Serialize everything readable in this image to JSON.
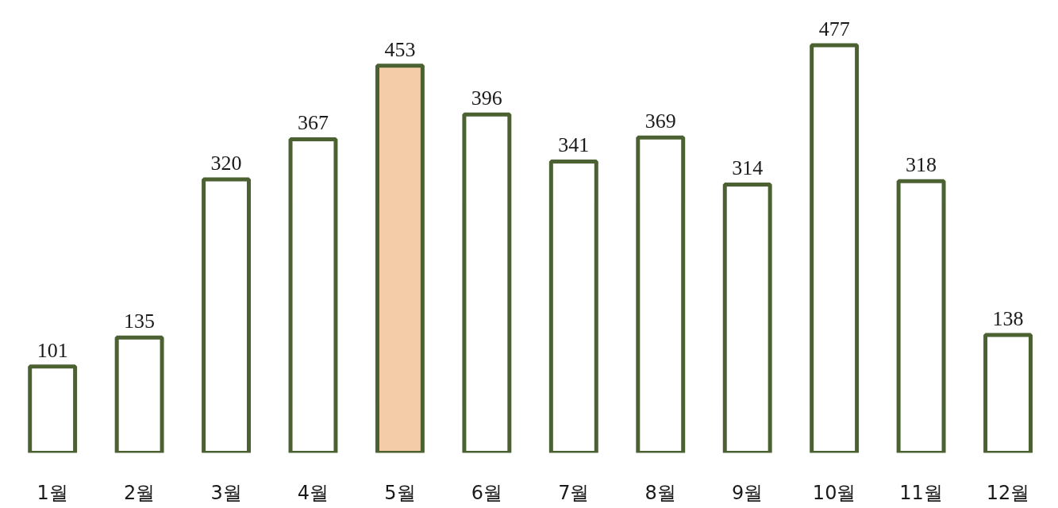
{
  "chart_data": {
    "type": "bar",
    "categories": [
      "1월",
      "2월",
      "3월",
      "4월",
      "5월",
      "6월",
      "7월",
      "8월",
      "9월",
      "10월",
      "11월",
      "12월"
    ],
    "values": [
      101,
      135,
      320,
      367,
      453,
      396,
      341,
      369,
      314,
      477,
      318,
      138
    ],
    "colors": [
      "#ffffff",
      "#ffffff",
      "#ffffff",
      "#ffffff",
      "#f4cca8",
      "#ffffff",
      "#ffffff",
      "#ffffff",
      "#ffffff",
      "#ffffff",
      "#ffffff",
      "#ffffff"
    ],
    "data_labels": true
  }
}
